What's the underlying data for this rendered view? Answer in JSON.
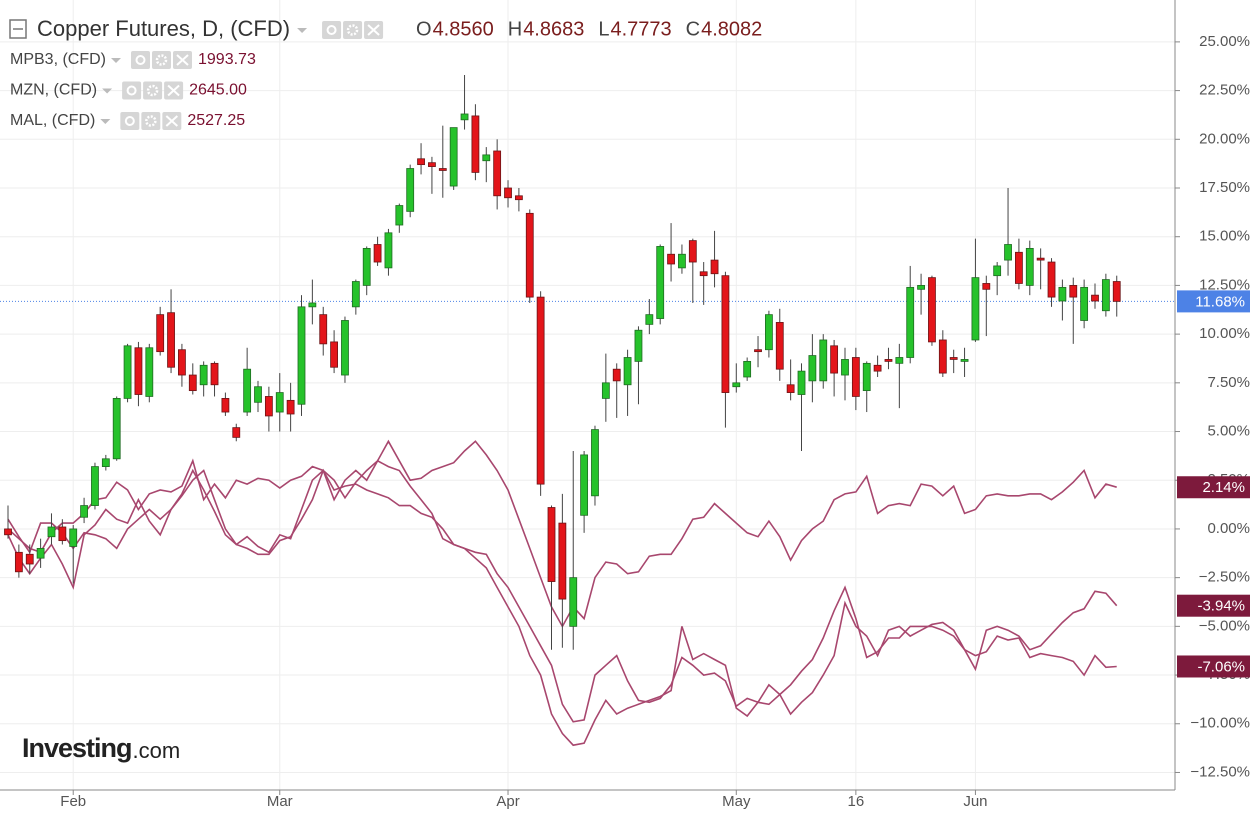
{
  "header": {
    "title": "Copper Futures, D, (CFD)",
    "ohlc": [
      {
        "key": "O",
        "value": "4.8560"
      },
      {
        "key": "H",
        "value": "4.8683"
      },
      {
        "key": "L",
        "value": "4.7773"
      },
      {
        "key": "C",
        "value": "4.8082"
      }
    ],
    "watermark": "Investing",
    "watermark_suffix": ".com"
  },
  "chart_data": {
    "type": "candlestick",
    "categories": [
      null,
      null,
      null,
      null,
      null,
      null,
      "Feb",
      null,
      null,
      null,
      null,
      null,
      null,
      null,
      null,
      null,
      null,
      null,
      null,
      null,
      null,
      null,
      null,
      null,
      null,
      "Mar",
      null,
      null,
      null,
      null,
      null,
      null,
      null,
      null,
      null,
      null,
      null,
      null,
      null,
      null,
      null,
      null,
      null,
      null,
      null,
      null,
      "Apr",
      null,
      null,
      null,
      null,
      null,
      null,
      null,
      null,
      null,
      null,
      null,
      null,
      null,
      null,
      null,
      null,
      null,
      null,
      null,
      null,
      "May",
      null,
      null,
      null,
      null,
      null,
      null,
      null,
      null,
      null,
      null,
      "16",
      null,
      null,
      null,
      null,
      null,
      null,
      null,
      null,
      null,
      null,
      "Jun",
      null,
      null,
      null,
      null,
      null,
      null,
      null,
      null,
      null,
      null,
      null,
      null,
      null
    ],
    "candles": {
      "up_color": "#26c22b",
      "down_color": "#e3151a",
      "open": [
        0,
        -1.2,
        -1.3,
        -1.5,
        -0.4,
        0.1,
        -0.9,
        0.6,
        1.2,
        3.2,
        3.6,
        6.7,
        9.3,
        6.8,
        11.0,
        11.1,
        9.2,
        7.9,
        7.4,
        8.5,
        6.7,
        5.2,
        6.0,
        6.5,
        6.8,
        6.0,
        6.6,
        6.4,
        11.4,
        11.0,
        9.6,
        7.9,
        11.4,
        12.5,
        14.6,
        13.4,
        15.6,
        16.3,
        19.0,
        18.8,
        18.5,
        17.6,
        21.0,
        21.2,
        18.9,
        19.4,
        17.5,
        17.1,
        16.2,
        11.9,
        1.1,
        0.3,
        -5.0,
        0.7,
        1.7,
        6.7,
        8.2,
        7.4,
        8.6,
        10.5,
        10.8,
        14.1,
        13.4,
        14.8,
        13.2,
        13.8,
        13.0,
        7.3,
        7.8,
        9.2,
        9.2,
        10.6,
        7.4,
        6.9,
        7.6,
        7.6,
        9.4,
        7.9,
        8.8,
        7.1,
        8.4,
        8.7,
        8.5,
        8.8,
        12.3,
        12.9,
        9.7,
        8.8,
        8.6,
        9.7,
        12.6,
        13.0,
        13.8,
        14.2,
        12.5,
        13.9,
        13.7,
        11.7,
        12.5,
        10.7,
        12.0,
        11.2,
        12.7
      ],
      "high": [
        1.2,
        -0.8,
        -0.8,
        -0.5,
        0.8,
        0.5,
        0.2,
        1.6,
        3.4,
        3.8,
        6.8,
        9.5,
        9.6,
        9.5,
        11.4,
        12.3,
        9.5,
        8.5,
        8.6,
        8.6,
        7.0,
        5.4,
        9.3,
        7.6,
        7.3,
        8.0,
        7.5,
        12.0,
        12.8,
        11.4,
        10.2,
        10.9,
        12.8,
        14.5,
        15.0,
        15.4,
        16.7,
        18.7,
        19.8,
        19.1,
        20.7,
        20.6,
        23.3,
        21.8,
        19.6,
        20.0,
        17.9,
        17.5,
        16.4,
        12.2,
        1.2,
        1.8,
        4.0,
        4.0,
        5.3,
        9.0,
        8.5,
        9.2,
        10.4,
        11.8,
        14.6,
        15.7,
        14.6,
        14.9,
        13.7,
        15.3,
        13.2,
        8.5,
        8.8,
        9.9,
        11.2,
        11.3,
        8.7,
        8.5,
        10.0,
        10.0,
        9.7,
        9.3,
        9.3,
        8.6,
        8.9,
        9.3,
        9.5,
        13.5,
        13.1,
        13.0,
        10.2,
        9.2,
        9.3,
        14.9,
        13.0,
        13.7,
        17.5,
        14.9,
        14.8,
        14.4,
        13.9,
        12.8,
        12.9,
        12.8,
        12.6,
        13.1,
        13.0
      ],
      "low": [
        -0.5,
        -2.5,
        -2.3,
        -2.0,
        -0.8,
        -0.8,
        -2.8,
        0.3,
        1.0,
        3.0,
        3.5,
        6.5,
        6.3,
        6.5,
        8.9,
        8.0,
        7.3,
        6.9,
        6.8,
        6.8,
        5.8,
        4.5,
        5.8,
        6.0,
        5.0,
        5.0,
        5.0,
        5.8,
        10.5,
        8.9,
        8.0,
        7.5,
        11.0,
        12.0,
        13.5,
        13.0,
        15.2,
        16.0,
        18.2,
        17.2,
        17.0,
        17.4,
        20.5,
        17.9,
        17.8,
        16.4,
        16.5,
        16.3,
        11.6,
        1.7,
        -6.2,
        -6.1,
        -6.2,
        -0.2,
        1.2,
        5.5,
        5.7,
        5.8,
        6.4,
        10.0,
        10.5,
        12.7,
        13.1,
        11.6,
        11.5,
        12.4,
        5.2,
        7.0,
        7.6,
        8.3,
        8.8,
        7.6,
        6.6,
        4.0,
        6.5,
        7.2,
        6.8,
        6.6,
        6.1,
        6.0,
        7.8,
        8.2,
        6.2,
        8.5,
        11.0,
        9.4,
        7.8,
        8.0,
        7.8,
        9.6,
        9.9,
        12.0,
        13.0,
        12.3,
        12.0,
        12.3,
        11.4,
        10.7,
        9.5,
        10.3,
        11.3,
        10.9,
        10.9
      ],
      "close": [
        -0.3,
        -2.2,
        -1.8,
        -1.0,
        0.1,
        -0.6,
        0.0,
        1.2,
        3.2,
        3.6,
        6.7,
        9.4,
        6.9,
        9.3,
        9.1,
        8.3,
        7.9,
        7.1,
        8.4,
        7.4,
        6.0,
        4.7,
        8.2,
        7.3,
        5.8,
        7.0,
        5.9,
        11.4,
        11.6,
        9.5,
        8.3,
        10.7,
        12.7,
        14.4,
        13.7,
        15.2,
        16.6,
        18.5,
        18.7,
        18.6,
        18.4,
        20.6,
        21.3,
        18.3,
        19.2,
        17.1,
        17.0,
        16.9,
        11.9,
        2.3,
        -2.7,
        -3.6,
        -2.5,
        3.8,
        5.1,
        7.5,
        7.6,
        8.8,
        10.2,
        11.0,
        14.5,
        13.6,
        14.1,
        13.7,
        13.0,
        13.1,
        7.0,
        7.5,
        8.6,
        9.1,
        11.0,
        8.2,
        7.0,
        8.1,
        8.9,
        9.7,
        8.0,
        8.7,
        6.8,
        8.5,
        8.1,
        8.6,
        8.8,
        12.4,
        12.5,
        9.6,
        8.0,
        8.7,
        8.7,
        12.9,
        12.3,
        13.5,
        14.6,
        12.6,
        14.4,
        13.8,
        11.9,
        12.4,
        11.9,
        12.4,
        11.7,
        12.8,
        11.68
      ],
      "last_label": "11.68%",
      "last_color": "#4d82e6"
    },
    "series": [
      {
        "name": "MPB3, (CFD)",
        "quote": "1993.73",
        "color": "#a8476e",
        "end_label": "2.14%",
        "values": [
          0,
          -0.5,
          -1.0,
          -1.2,
          -0.2,
          0.3,
          0.3,
          0.8,
          1.5,
          1.6,
          2.4,
          2.0,
          1.0,
          1.8,
          2.0,
          1.9,
          2.2,
          3.5,
          1.5,
          2.3,
          1.6,
          2.5,
          2.3,
          2.6,
          2.5,
          2.1,
          2.5,
          2.7,
          3.2,
          3.0,
          2.5,
          1.6,
          2.4,
          3.0,
          3.5,
          4.5,
          3.5,
          2.5,
          2.6,
          3.0,
          3.2,
          3.4,
          4.0,
          4.5,
          3.8,
          3.0,
          2.0,
          0.5,
          -1.0,
          -2.5,
          -4.0,
          -5.0,
          -4.0,
          -4.6,
          -2.5,
          -1.7,
          -1.8,
          -2.3,
          -2.2,
          -1.4,
          -1.3,
          -1.3,
          -0.5,
          0.5,
          0.6,
          1.3,
          0.8,
          0.3,
          -0.2,
          -0.4,
          0.4,
          -0.4,
          -1.6,
          -0.6,
          0.0,
          0.4,
          1.5,
          1.8,
          1.9,
          2.7,
          0.8,
          1.2,
          1.3,
          1.2,
          2.3,
          2.2,
          1.7,
          2.2,
          0.8,
          1.0,
          1.7,
          1.8,
          1.7,
          1.7,
          1.8,
          1.8,
          1.5,
          1.9,
          2.4,
          3.0,
          1.6,
          2.3,
          2.14
        ]
      },
      {
        "name": "MZN, (CFD)",
        "quote": "2645.00",
        "color": "#a8476e",
        "end_label": "-3.94%",
        "values": [
          -0.3,
          -1.5,
          -2.3,
          -1.5,
          -0.8,
          -1.8,
          -3.0,
          -0.3,
          0.2,
          1.0,
          0.5,
          0.3,
          1.5,
          0.4,
          -0.3,
          1.0,
          1.8,
          3.0,
          2.0,
          0.9,
          -0.3,
          -0.8,
          -0.4,
          -0.9,
          -1.2,
          -0.3,
          -0.5,
          1.0,
          2.5,
          3.0,
          1.5,
          2.5,
          3.0,
          2.5,
          3.5,
          3.2,
          3.0,
          2.2,
          1.5,
          0.8,
          -0.5,
          -0.8,
          -1.0,
          -1.2,
          -1.3,
          -2.3,
          -3.0,
          -4.0,
          -5.0,
          -6.0,
          -7.0,
          -9.0,
          -9.9,
          -9.8,
          -7.5,
          -7.0,
          -6.5,
          -7.8,
          -8.8,
          -8.9,
          -8.7,
          -8.0,
          -6.6,
          -7.0,
          -7.5,
          -7.4,
          -7.8,
          -9.1,
          -8.7,
          -8.9,
          -8.0,
          -8.5,
          -8.0,
          -7.3,
          -6.7,
          -5.6,
          -4.2,
          -3.0,
          -4.6,
          -6.6,
          -6.3,
          -5.6,
          -5.6,
          -5.0,
          -5.0,
          -5.0,
          -5.2,
          -5.5,
          -6.2,
          -7.2,
          -5.2,
          -5.0,
          -5.2,
          -5.5,
          -6.2,
          -6.0,
          -5.4,
          -4.8,
          -4.3,
          -4.1,
          -3.2,
          -3.3,
          -3.94
        ]
      },
      {
        "name": "MAL, (CFD)",
        "quote": "2527.25",
        "color": "#a8476e",
        "end_label": "-7.06%",
        "values": [
          0.5,
          -0.4,
          -1.2,
          0.3,
          0.3,
          -0.2,
          -1.0,
          -0.2,
          -0.3,
          -0.5,
          -1.0,
          0.0,
          0.5,
          1.0,
          0.5,
          1.0,
          1.7,
          2.5,
          3.0,
          1.5,
          0.0,
          -0.8,
          -1.0,
          -1.3,
          -1.3,
          -0.6,
          -0.4,
          0.5,
          1.5,
          3.0,
          2.0,
          2.2,
          2.3,
          2.0,
          1.8,
          1.6,
          1.2,
          1.2,
          0.8,
          0.6,
          0.0,
          -0.8,
          -1.0,
          -1.5,
          -2.0,
          -3.0,
          -4.0,
          -5.0,
          -6.5,
          -7.5,
          -9.5,
          -10.5,
          -11.1,
          -11.0,
          -9.8,
          -8.8,
          -9.5,
          -9.2,
          -9.0,
          -8.8,
          -8.6,
          -8.3,
          -5.0,
          -6.7,
          -6.4,
          -6.7,
          -7.0,
          -9.2,
          -9.6,
          -8.9,
          -9.0,
          -8.5,
          -9.5,
          -8.9,
          -8.4,
          -7.5,
          -6.5,
          -3.8,
          -5.0,
          -5.5,
          -6.5,
          -5.2,
          -5.0,
          -5.5,
          -5.2,
          -4.9,
          -4.8,
          -5.2,
          -6.2,
          -6.5,
          -6.3,
          -5.5,
          -5.7,
          -5.6,
          -6.6,
          -6.4,
          -6.5,
          -6.6,
          -6.8,
          -7.5,
          -6.5,
          -7.1,
          -7.06
        ]
      }
    ],
    "end_label_color": "#7d1a3c",
    "ylim": [
      -13.4,
      27.15
    ],
    "yticks": [
      {
        "value": -12.5,
        "label": "−12.50%"
      },
      {
        "value": -10,
        "label": "−10.00%"
      },
      {
        "value": -7.5,
        "label": "−7.50%"
      },
      {
        "value": -5,
        "label": "−5.00%"
      },
      {
        "value": -2.5,
        "label": "−2.50%"
      },
      {
        "value": 0,
        "label": "0.00%"
      },
      {
        "value": 2.5,
        "label": "2.50%"
      },
      {
        "value": 5,
        "label": "5.00%"
      },
      {
        "value": 7.5,
        "label": "7.50%"
      },
      {
        "value": 10,
        "label": "10.00%"
      },
      {
        "value": 12.5,
        "label": "12.50%"
      },
      {
        "value": 15,
        "label": "15.00%"
      },
      {
        "value": 17.5,
        "label": "17.50%"
      },
      {
        "value": 20,
        "label": "20.00%"
      },
      {
        "value": 22.5,
        "label": "22.50%"
      },
      {
        "value": 25,
        "label": "25.00%"
      }
    ],
    "grid": true
  }
}
